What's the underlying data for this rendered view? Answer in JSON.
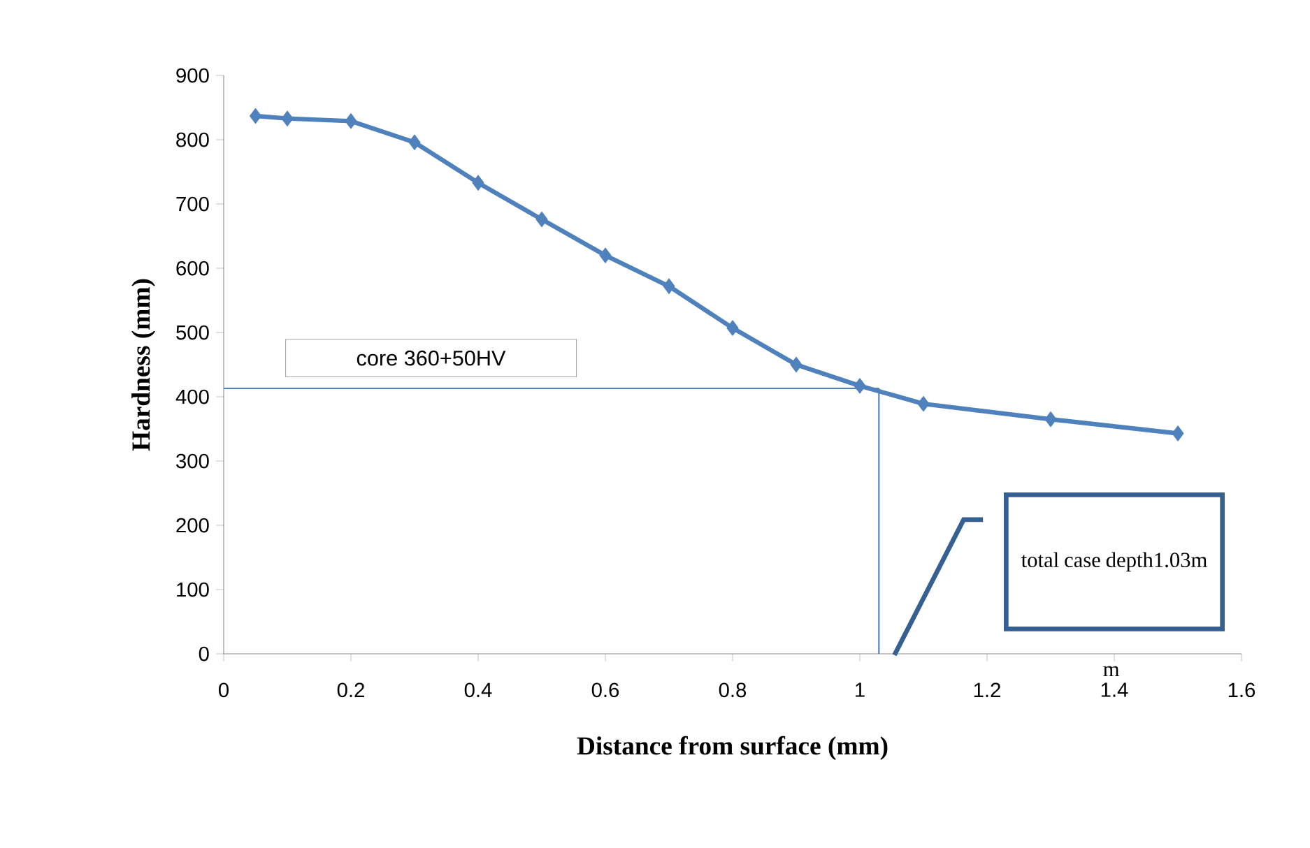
{
  "chart_data": {
    "type": "line",
    "xlabel": "Distance from surface (mm)",
    "ylabel": "Hardness (mm)",
    "x": [
      0.05,
      0.1,
      0.2,
      0.3,
      0.4,
      0.5,
      0.6,
      0.7,
      0.8,
      0.9,
      1.0,
      1.1,
      1.3,
      1.5
    ],
    "series": [
      {
        "color": "#4f81bd",
        "values": [
          837,
          833,
          829,
          796,
          733,
          676,
          620,
          572,
          507,
          450,
          417,
          389,
          365,
          343
        ]
      }
    ],
    "xlim": [
      0,
      1.6
    ],
    "xticks": [
      0,
      0.2,
      0.4,
      0.6,
      0.8,
      1,
      1.2,
      1.4,
      1.6
    ],
    "ylim": [
      0,
      900
    ],
    "yticks": [
      0,
      100,
      200,
      300,
      400,
      500,
      600,
      700,
      800,
      900
    ],
    "marker": "diamond",
    "line_style": "solid",
    "grid": false,
    "ref_lines": [
      {
        "axis": "y",
        "value": 413,
        "label": "core 360+50HV",
        "color": "#4f81bd"
      },
      {
        "axis": "x",
        "value": 1.03,
        "color": "#4f81bd"
      }
    ],
    "annotations": [
      "total case depth1.03m",
      "m"
    ]
  }
}
